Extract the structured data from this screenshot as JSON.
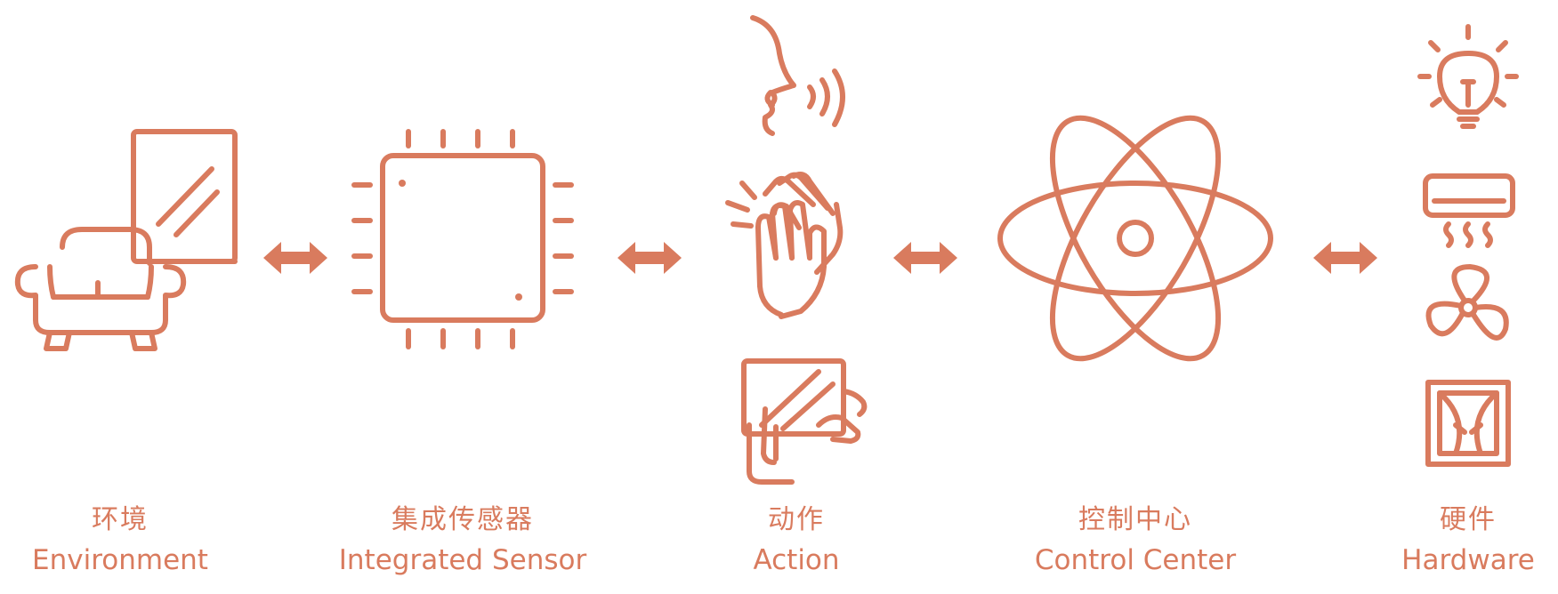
{
  "accent_color": "#d97b5e",
  "stages": [
    {
      "zh": "环境",
      "en": "Environment",
      "icons": [
        "sofa-icon",
        "window-icon"
      ]
    },
    {
      "zh": "集成传感器",
      "en": "Integrated Sensor",
      "icons": [
        "chip-icon"
      ]
    },
    {
      "zh": "动作",
      "en": "Action",
      "icons": [
        "voice-icon",
        "clap-icon",
        "touch-tablet-icon"
      ]
    },
    {
      "zh": "控制中心",
      "en": "Control Center",
      "icons": [
        "atom-icon"
      ]
    },
    {
      "zh": "硬件",
      "en": "Hardware",
      "icons": [
        "light-bulb-icon",
        "air-conditioner-icon",
        "fan-icon",
        "curtain-icon"
      ]
    }
  ],
  "connectors": [
    "double-arrow-icon",
    "double-arrow-icon",
    "double-arrow-icon",
    "double-arrow-icon"
  ]
}
